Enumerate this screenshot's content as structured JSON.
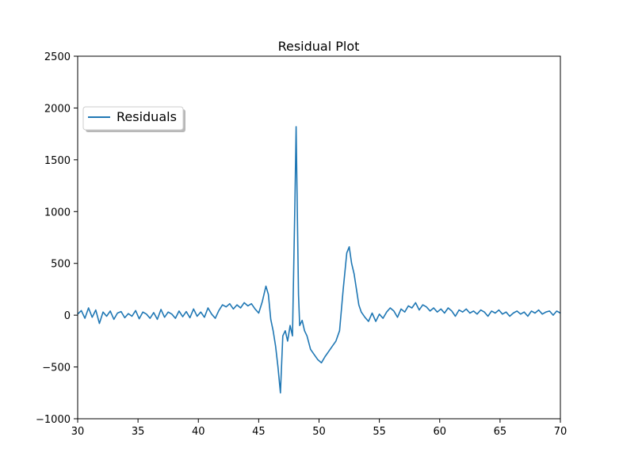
{
  "chart_data": {
    "type": "line",
    "title": "Residual Plot",
    "xlabel": "",
    "ylabel": "",
    "xlim": [
      30,
      70
    ],
    "ylim": [
      -1000,
      2500
    ],
    "xticks": [
      30,
      35,
      40,
      45,
      50,
      55,
      60,
      65,
      70
    ],
    "yticks": [
      -1000,
      -500,
      0,
      500,
      1000,
      1500,
      2000,
      2500
    ],
    "xtick_labels": [
      "30",
      "35",
      "40",
      "45",
      "50",
      "55",
      "60",
      "65",
      "70"
    ],
    "ytick_labels": [
      "−1000",
      "−500",
      "0",
      "500",
      "1000",
      "1500",
      "2000",
      "2500"
    ],
    "grid": false,
    "legend_position": "upper-left",
    "series": [
      {
        "name": "Residuals",
        "color": "#1f77b4",
        "x": [
          30.0,
          30.3,
          30.6,
          30.9,
          31.2,
          31.5,
          31.8,
          32.1,
          32.4,
          32.7,
          33.0,
          33.3,
          33.6,
          33.9,
          34.2,
          34.5,
          34.8,
          35.1,
          35.4,
          35.7,
          36.0,
          36.3,
          36.6,
          36.9,
          37.2,
          37.5,
          37.8,
          38.1,
          38.4,
          38.7,
          39.0,
          39.3,
          39.6,
          39.9,
          40.2,
          40.5,
          40.8,
          41.1,
          41.4,
          41.7,
          42.0,
          42.3,
          42.6,
          42.9,
          43.2,
          43.5,
          43.8,
          44.1,
          44.4,
          44.7,
          45.0,
          45.3,
          45.6,
          45.8,
          46.0,
          46.2,
          46.4,
          46.6,
          46.8,
          47.0,
          47.2,
          47.4,
          47.6,
          47.8,
          48.0,
          48.1,
          48.2,
          48.3,
          48.4,
          48.6,
          48.8,
          49.0,
          49.3,
          49.6,
          49.9,
          50.2,
          50.5,
          50.8,
          51.1,
          51.4,
          51.7,
          52.0,
          52.3,
          52.5,
          52.7,
          52.9,
          53.1,
          53.3,
          53.5,
          53.8,
          54.1,
          54.4,
          54.7,
          55.0,
          55.3,
          55.6,
          55.9,
          56.2,
          56.5,
          56.8,
          57.1,
          57.4,
          57.7,
          58.0,
          58.3,
          58.6,
          58.9,
          59.2,
          59.5,
          59.8,
          60.1,
          60.4,
          60.7,
          61.0,
          61.3,
          61.6,
          61.9,
          62.2,
          62.5,
          62.8,
          63.1,
          63.4,
          63.7,
          64.0,
          64.3,
          64.6,
          64.9,
          65.2,
          65.5,
          65.8,
          66.1,
          66.4,
          66.7,
          67.0,
          67.3,
          67.6,
          67.9,
          68.2,
          68.5,
          68.8,
          69.1,
          69.4,
          69.7,
          70.0
        ],
        "y": [
          10,
          45,
          -30,
          70,
          -20,
          50,
          -80,
          30,
          -10,
          40,
          -40,
          20,
          35,
          -25,
          15,
          -10,
          45,
          -35,
          30,
          10,
          -30,
          25,
          -40,
          55,
          -20,
          30,
          10,
          -30,
          40,
          -15,
          35,
          -25,
          60,
          -10,
          30,
          -20,
          70,
          10,
          -30,
          45,
          100,
          80,
          110,
          60,
          100,
          70,
          120,
          90,
          110,
          60,
          20,
          130,
          280,
          200,
          -40,
          -150,
          -300,
          -500,
          -750,
          -200,
          -150,
          -250,
          -100,
          -200,
          1100,
          1820,
          1000,
          200,
          -100,
          -50,
          -150,
          -200,
          -330,
          -380,
          -430,
          -460,
          -400,
          -350,
          -300,
          -250,
          -150,
          250,
          600,
          660,
          500,
          400,
          250,
          100,
          30,
          -20,
          -60,
          20,
          -60,
          10,
          -30,
          30,
          70,
          40,
          -20,
          60,
          30,
          90,
          70,
          120,
          50,
          100,
          80,
          40,
          70,
          30,
          60,
          20,
          70,
          40,
          -10,
          50,
          30,
          60,
          20,
          40,
          10,
          50,
          30,
          -10,
          40,
          20,
          50,
          10,
          30,
          -10,
          20,
          40,
          10,
          30,
          -10,
          40,
          20,
          50,
          10,
          30,
          40,
          0,
          40,
          20
        ]
      }
    ]
  }
}
